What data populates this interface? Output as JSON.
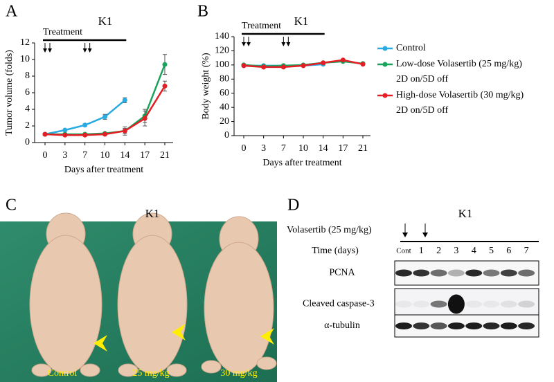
{
  "chart_data": [
    {
      "panel": "A",
      "type": "line",
      "title": "K1",
      "ylabel": "Tumor volume (folds)",
      "xlabel": "Days after treatment",
      "annotation": "Treatment",
      "categories": [
        "0",
        "3",
        "7",
        "10",
        "14",
        "17",
        "21"
      ],
      "ylim": [
        0,
        12
      ],
      "yticks": [
        0,
        2,
        4,
        6,
        8,
        10,
        12
      ],
      "series": [
        {
          "color": "#29abe2",
          "values": [
            1.0,
            1.5,
            2.1,
            3.1,
            5.1,
            null,
            null
          ],
          "errors": [
            0.1,
            0.1,
            0.15,
            0.3,
            0.3,
            null,
            null
          ]
        },
        {
          "color": "#1aa35a",
          "values": [
            1.0,
            1.0,
            1.0,
            1.1,
            1.4,
            3.2,
            9.4
          ],
          "errors": [
            0.1,
            0.1,
            0.1,
            0.1,
            0.5,
            0.8,
            1.2
          ]
        },
        {
          "color": "#e31e24",
          "values": [
            1.0,
            0.9,
            0.9,
            1.0,
            1.4,
            2.9,
            6.8
          ],
          "errors": [
            0.1,
            0.1,
            0.1,
            0.1,
            0.3,
            0.9,
            0.6
          ]
        }
      ]
    },
    {
      "panel": "B",
      "type": "line",
      "title": "K1",
      "ylabel": "Body weight (%)",
      "xlabel": "Days after treatment",
      "annotation": "Treatment",
      "categories": [
        "0",
        "3",
        "7",
        "10",
        "14",
        "17",
        "21"
      ],
      "ylim": [
        0,
        140
      ],
      "yticks": [
        0,
        20,
        40,
        60,
        80,
        100,
        120,
        140
      ],
      "legend": "right",
      "series": [
        {
          "name": "Control",
          "color": "#29abe2",
          "values": [
            99,
            99,
            99,
            99,
            101,
            null,
            null
          ]
        },
        {
          "name": "Low-dose Volasertib (25 mg/kg)\n2D on/5D off",
          "color": "#1aa35a",
          "values": [
            100,
            98,
            99,
            100,
            103,
            105,
            102
          ]
        },
        {
          "name": "High-dose Volasertib (30 mg/kg)\n2D on/5D off",
          "color": "#e31e24",
          "values": [
            99,
            97,
            97,
            99,
            103,
            107,
            101
          ]
        }
      ]
    }
  ],
  "panel_c": {
    "panel": "C",
    "title": "K1",
    "labels": [
      "Control",
      "25 mg/kg",
      "30 mg/kg"
    ]
  },
  "panel_d": {
    "panel": "D",
    "title": "K1",
    "treatment": "Volasertib (25 mg/kg)",
    "time_label": "Time (days)",
    "lanes": [
      "Cont",
      "1",
      "2",
      "3",
      "4",
      "5",
      "6",
      "7"
    ],
    "rows": [
      "PCNA",
      "Cleaved caspase-3",
      "α-tubulin"
    ]
  }
}
